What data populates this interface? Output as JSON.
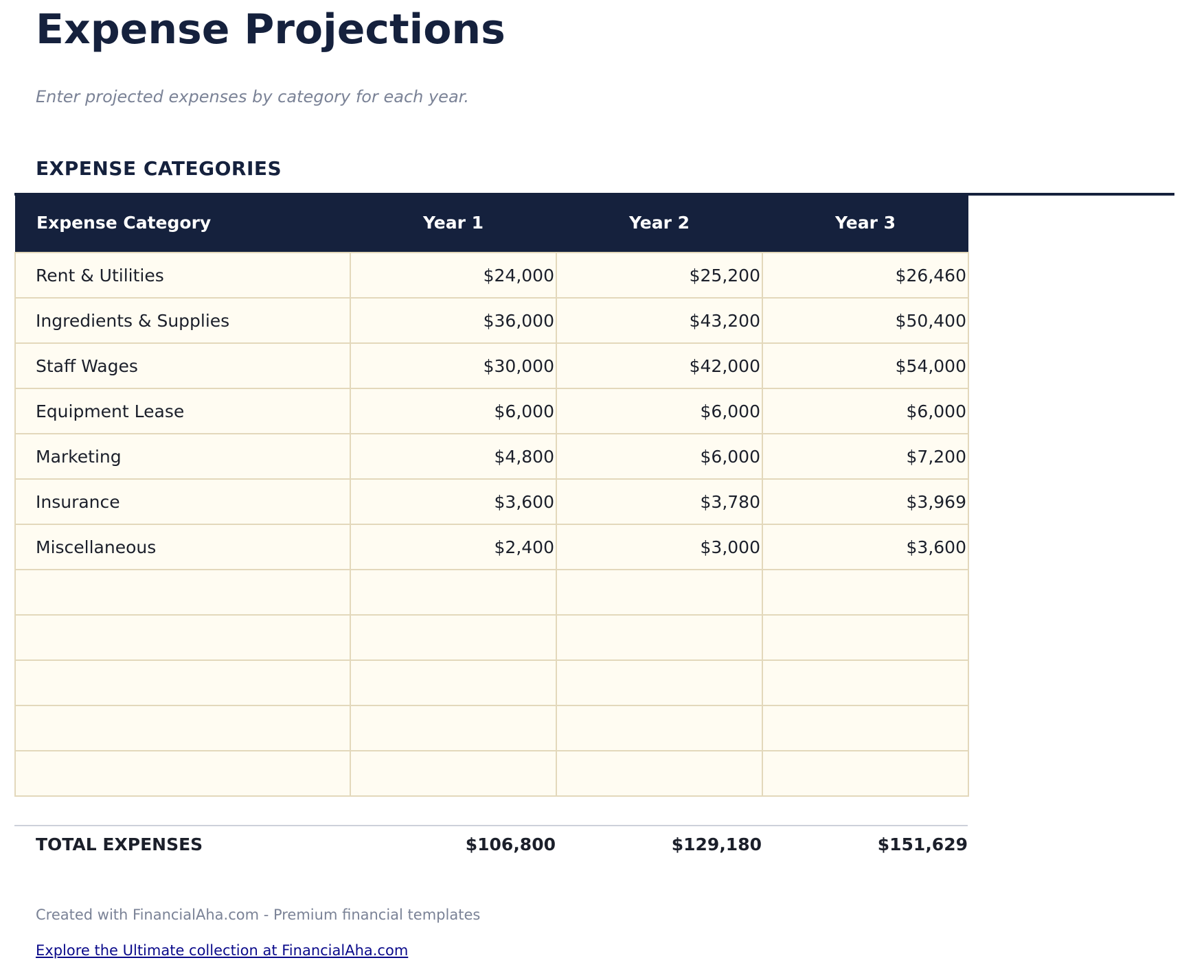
{
  "title": "Expense Projections",
  "subtitle": "Enter projected expenses by category for each year.",
  "section": "EXPENSE CATEGORIES",
  "table": {
    "headers": [
      "Expense Category",
      "Year 1",
      "Year 2",
      "Year 3"
    ],
    "rows": [
      [
        "Rent & Utilities",
        "$24,000",
        "$25,200",
        "$26,460"
      ],
      [
        "Ingredients & Supplies",
        "$36,000",
        "$43,200",
        "$50,400"
      ],
      [
        "Staff Wages",
        "$30,000",
        "$42,000",
        "$54,000"
      ],
      [
        "Equipment Lease",
        "$6,000",
        "$6,000",
        "$6,000"
      ],
      [
        "Marketing",
        "$4,800",
        "$6,000",
        "$7,200"
      ],
      [
        "Insurance",
        "$3,600",
        "$3,780",
        "$3,969"
      ],
      [
        "Miscellaneous",
        "$2,400",
        "$3,000",
        "$3,600"
      ],
      [
        "",
        "",
        "",
        ""
      ],
      [
        "",
        "",
        "",
        ""
      ],
      [
        "",
        "",
        "",
        ""
      ],
      [
        "",
        "",
        "",
        ""
      ],
      [
        "",
        "",
        "",
        ""
      ]
    ]
  },
  "total": {
    "label": "TOTAL EXPENSES",
    "values": [
      "$106,800",
      "$129,180",
      "$151,629"
    ]
  },
  "footer": {
    "credit": "Created with FinancialAha.com - Premium financial templates",
    "link": "Explore the Ultimate collection at FinancialAha.com"
  }
}
